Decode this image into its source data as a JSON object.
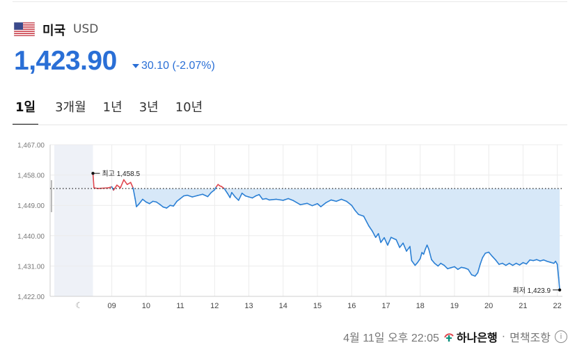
{
  "header": {
    "country": "미국",
    "currency_code": "USD",
    "price": "1,423.90",
    "change": "30.10 (-2.07%)",
    "change_direction": "down",
    "accent_color": "#2a6fd6"
  },
  "tabs": [
    {
      "label": "1일",
      "active": true
    },
    {
      "label": "3개월",
      "active": false
    },
    {
      "label": "1년",
      "active": false
    },
    {
      "label": "3년",
      "active": false
    },
    {
      "label": "10년",
      "active": false
    }
  ],
  "footer": {
    "timestamp": "4월 11일 오후 22:05",
    "bank": "하나은행",
    "separator": "·",
    "disclaimer": "면책조항"
  },
  "chart_data": {
    "type": "line",
    "y_ticks": [
      "1,467.00",
      "1,458.00",
      "1,449.00",
      "1,440.00",
      "1,431.00",
      "1,422.00"
    ],
    "ylim": [
      1422,
      1467
    ],
    "x_ticks": [
      "09",
      "10",
      "11",
      "12",
      "13",
      "14",
      "15",
      "16",
      "17",
      "18",
      "19",
      "20",
      "21",
      "22"
    ],
    "xlim": [
      7.2,
      22.15
    ],
    "night_marker": "moon-icon",
    "previous_close": 1454.0,
    "high_label": "최고 1,458.5",
    "low_label": "최저 1,423.9",
    "high": 1458.5,
    "low": 1423.9,
    "colors": {
      "line": "#2a7fd4",
      "up": "#e0474f",
      "area": "#d7e8f8",
      "premarket": "#eef1f7"
    },
    "series": [
      {
        "values": [
          [
            8.45,
            1458.5
          ],
          [
            8.48,
            1454.2
          ],
          [
            8.6,
            1454.0
          ],
          [
            8.9,
            1454.2
          ],
          [
            9.0,
            1454.5
          ],
          [
            9.05,
            1453.5
          ],
          [
            9.15,
            1455.0
          ],
          [
            9.25,
            1454.2
          ],
          [
            9.35,
            1456.6
          ],
          [
            9.45,
            1455.2
          ],
          [
            9.55,
            1455.8
          ],
          [
            9.62,
            1454.2
          ],
          [
            9.68,
            1451.0
          ],
          [
            9.72,
            1448.6
          ],
          [
            9.8,
            1449.5
          ],
          [
            9.9,
            1450.8
          ],
          [
            10.0,
            1450.0
          ],
          [
            10.1,
            1449.5
          ],
          [
            10.2,
            1450.2
          ],
          [
            10.3,
            1450.0
          ],
          [
            10.4,
            1449.3
          ],
          [
            10.5,
            1448.5
          ],
          [
            10.6,
            1448.2
          ],
          [
            10.7,
            1449.0
          ],
          [
            10.8,
            1448.8
          ],
          [
            10.9,
            1450.2
          ],
          [
            11.0,
            1451.0
          ],
          [
            11.1,
            1451.8
          ],
          [
            11.2,
            1452.0
          ],
          [
            11.35,
            1451.5
          ],
          [
            11.5,
            1451.9
          ],
          [
            11.65,
            1452.3
          ],
          [
            11.8,
            1451.6
          ],
          [
            11.9,
            1452.8
          ],
          [
            12.0,
            1453.6
          ],
          [
            12.05,
            1454.5
          ],
          [
            12.1,
            1455.2
          ],
          [
            12.15,
            1454.8
          ],
          [
            12.2,
            1454.6
          ],
          [
            12.28,
            1454.0
          ],
          [
            12.38,
            1452.5
          ],
          [
            12.45,
            1451.3
          ],
          [
            12.5,
            1452.8
          ],
          [
            12.6,
            1451.5
          ],
          [
            12.7,
            1450.5
          ],
          [
            12.8,
            1452.6
          ],
          [
            12.9,
            1451.8
          ],
          [
            13.0,
            1451.5
          ],
          [
            13.1,
            1451.2
          ],
          [
            13.2,
            1451.8
          ],
          [
            13.3,
            1452.2
          ],
          [
            13.4,
            1450.8
          ],
          [
            13.5,
            1451.0
          ],
          [
            13.6,
            1450.6
          ],
          [
            13.8,
            1450.8
          ],
          [
            14.0,
            1450.5
          ],
          [
            14.15,
            1451.0
          ],
          [
            14.3,
            1450.4
          ],
          [
            14.5,
            1449.2
          ],
          [
            14.7,
            1449.6
          ],
          [
            14.85,
            1448.9
          ],
          [
            15.0,
            1449.5
          ],
          [
            15.1,
            1448.6
          ],
          [
            15.25,
            1449.8
          ],
          [
            15.4,
            1450.6
          ],
          [
            15.55,
            1450.2
          ],
          [
            15.7,
            1450.8
          ],
          [
            15.85,
            1450.2
          ],
          [
            16.0,
            1449.0
          ],
          [
            16.1,
            1447.5
          ],
          [
            16.2,
            1446.3
          ],
          [
            16.35,
            1445.8
          ],
          [
            16.5,
            1442.9
          ],
          [
            16.6,
            1441.4
          ],
          [
            16.7,
            1439.5
          ],
          [
            16.78,
            1440.6
          ],
          [
            16.85,
            1438.0
          ],
          [
            16.95,
            1439.4
          ],
          [
            17.05,
            1437.2
          ],
          [
            17.15,
            1439.5
          ],
          [
            17.3,
            1438.8
          ],
          [
            17.4,
            1436.5
          ],
          [
            17.5,
            1437.8
          ],
          [
            17.6,
            1435.4
          ],
          [
            17.7,
            1436.8
          ],
          [
            17.75,
            1432.6
          ],
          [
            17.85,
            1431.2
          ],
          [
            17.92,
            1432.0
          ],
          [
            18.0,
            1433.2
          ],
          [
            18.05,
            1435.0
          ],
          [
            18.1,
            1434.5
          ],
          [
            18.15,
            1436.0
          ],
          [
            18.2,
            1437.2
          ],
          [
            18.25,
            1436.0
          ],
          [
            18.33,
            1432.9
          ],
          [
            18.42,
            1431.8
          ],
          [
            18.52,
            1431.0
          ],
          [
            18.6,
            1431.8
          ],
          [
            18.7,
            1431.2
          ],
          [
            18.8,
            1430.2
          ],
          [
            18.9,
            1430.5
          ],
          [
            19.0,
            1430.8
          ],
          [
            19.1,
            1430.0
          ],
          [
            19.2,
            1430.6
          ],
          [
            19.3,
            1430.4
          ],
          [
            19.4,
            1430.0
          ],
          [
            19.5,
            1428.4
          ],
          [
            19.6,
            1428.0
          ],
          [
            19.68,
            1429.0
          ],
          [
            19.75,
            1431.5
          ],
          [
            19.82,
            1433.5
          ],
          [
            19.9,
            1434.8
          ],
          [
            20.0,
            1435.1
          ],
          [
            20.1,
            1433.9
          ],
          [
            20.2,
            1432.8
          ],
          [
            20.3,
            1431.5
          ],
          [
            20.4,
            1431.8
          ],
          [
            20.5,
            1431.2
          ],
          [
            20.6,
            1431.8
          ],
          [
            20.7,
            1431.2
          ],
          [
            20.8,
            1431.8
          ],
          [
            20.9,
            1431.3
          ],
          [
            21.0,
            1432.0
          ],
          [
            21.1,
            1431.6
          ],
          [
            21.2,
            1432.8
          ],
          [
            21.3,
            1432.6
          ],
          [
            21.4,
            1432.9
          ],
          [
            21.5,
            1432.5
          ],
          [
            21.6,
            1432.8
          ],
          [
            21.7,
            1432.4
          ],
          [
            21.8,
            1432.1
          ],
          [
            21.9,
            1431.8
          ],
          [
            21.95,
            1432.4
          ],
          [
            22.0,
            1431.5
          ],
          [
            22.04,
            1427.5
          ],
          [
            22.07,
            1423.9
          ]
        ]
      }
    ]
  }
}
